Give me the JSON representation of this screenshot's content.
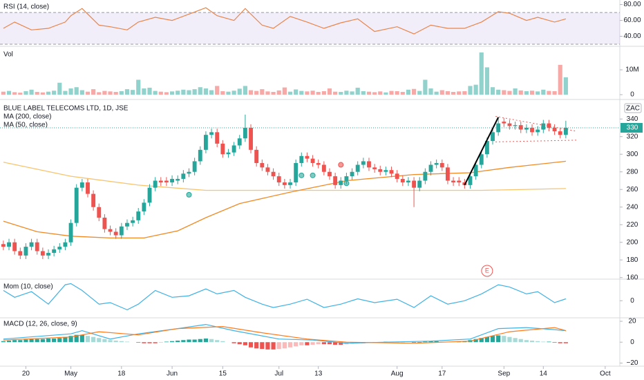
{
  "chart_data": [
    {
      "type": "line",
      "title": "RSI (14, close)",
      "color": "#e8844a",
      "band": [
        30,
        70
      ],
      "band_color": "#7e57c2",
      "x": [
        0,
        2,
        5,
        8,
        11,
        12,
        14,
        17,
        19,
        22,
        24,
        27,
        30,
        33,
        36,
        38,
        41,
        43,
        46,
        48,
        51,
        54,
        57,
        60,
        63,
        66,
        70,
        73,
        76,
        79,
        82,
        85,
        88,
        90,
        93,
        95,
        98,
        100
      ],
      "values": [
        50,
        58,
        48,
        50,
        58,
        66,
        75,
        54,
        52,
        48,
        58,
        64,
        60,
        68,
        76,
        66,
        60,
        75,
        54,
        50,
        65,
        58,
        50,
        57,
        62,
        46,
        52,
        43,
        54,
        50,
        50,
        58,
        71,
        69,
        60,
        64,
        58,
        62
      ],
      "ylim": [
        30,
        84
      ],
      "yticks": [
        {
          "value": 40,
          "label": "40.00"
        },
        {
          "value": 60,
          "label": "60.00"
        },
        {
          "value": 80,
          "label": "80.00"
        }
      ]
    },
    {
      "type": "bar",
      "title": "Vol",
      "values": [
        1.2,
        1.5,
        1,
        0.8,
        1.4,
        2,
        1.1,
        0.9,
        1.2,
        1.6,
        4.8,
        1.5,
        2.5,
        3,
        1.8,
        1.2,
        2.2,
        1,
        1.5,
        1.3,
        1.1,
        1.4,
        2.2,
        1.9,
        6,
        2.5,
        2.8,
        1.5,
        1.2,
        1,
        1.3,
        1.6,
        2,
        1.8,
        2.2,
        3,
        2.5,
        1.8,
        3.5,
        1.4,
        1.2,
        1.6,
        2.4,
        3.5,
        1.8,
        1.5,
        2.2,
        1.3,
        1.1,
        1.7,
        2.9,
        1.2,
        2.1,
        1.5,
        1.3,
        1.6,
        1.1,
        1.4,
        2.5,
        1.2,
        1.1,
        1.6,
        1.3,
        2.8,
        1.4,
        1.2,
        1,
        1.3,
        0.9,
        1.5,
        1.4,
        1.1,
        2,
        2.3,
        1.5,
        6,
        2.5,
        1.2,
        1.8,
        1.4,
        1.1,
        1.3,
        1.4,
        3.5,
        4,
        17,
        11,
        3,
        2,
        1.8,
        1.5,
        2.5,
        1.7,
        1.4,
        1.6,
        1.3,
        2,
        1.5,
        1.4,
        12,
        7
      ],
      "ylim": [
        0,
        17.8
      ],
      "yticks": [
        0,
        {
          "value": 10,
          "label": "10M"
        }
      ]
    },
    {
      "type": "candlestick",
      "title": "BLUE LABEL TELECOMS LTD, 1D, JSE",
      "currency": "ZAC",
      "up_color": "#26a69a",
      "down_color": "#ef5350",
      "open": [
        198,
        195,
        200,
        190,
        185,
        195,
        200,
        190,
        185,
        188,
        192,
        195,
        200,
        222,
        262,
        268,
        255,
        240,
        228,
        215,
        212,
        208,
        218,
        222,
        225,
        235,
        245,
        262,
        270,
        270,
        268,
        270,
        272,
        278,
        280,
        292,
        305,
        322,
        325,
        312,
        300,
        302,
        310,
        318,
        330,
        305,
        290,
        285,
        280,
        275,
        268,
        265,
        268,
        290,
        298,
        295,
        290,
        288,
        280,
        275,
        265,
        270,
        275,
        280,
        288,
        292,
        285,
        283,
        280,
        282,
        278,
        272,
        268,
        270,
        262,
        270,
        280,
        288,
        290,
        285,
        270,
        270,
        268,
        265,
        275,
        288,
        300,
        315,
        325,
        337,
        335,
        332,
        333,
        328,
        330,
        325,
        328,
        335,
        330,
        326,
        322
      ],
      "high": [
        202,
        204,
        204,
        194,
        199,
        204,
        204,
        194,
        192,
        196,
        199,
        204,
        226,
        266,
        272,
        272,
        259,
        244,
        232,
        219,
        216,
        222,
        226,
        229,
        239,
        249,
        266,
        274,
        274,
        274,
        276,
        276,
        282,
        284,
        296,
        309,
        326,
        329,
        329,
        316,
        306,
        314,
        322,
        345,
        334,
        309,
        294,
        289,
        284,
        279,
        272,
        272,
        294,
        302,
        302,
        299,
        294,
        292,
        284,
        279,
        274,
        279,
        284,
        292,
        296,
        296,
        289,
        287,
        286,
        286,
        282,
        276,
        274,
        274,
        274,
        284,
        292,
        294,
        294,
        289,
        274,
        274,
        272,
        279,
        292,
        304,
        319,
        329,
        342,
        341,
        339,
        337,
        337,
        334,
        334,
        332,
        339,
        339,
        334,
        330,
        338
      ],
      "low": [
        191,
        191,
        186,
        181,
        181,
        191,
        186,
        181,
        181,
        184,
        188,
        191,
        196,
        218,
        258,
        251,
        236,
        224,
        211,
        208,
        204,
        204,
        214,
        218,
        221,
        231,
        241,
        258,
        264,
        264,
        264,
        266,
        268,
        274,
        276,
        288,
        301,
        318,
        308,
        296,
        296,
        298,
        306,
        314,
        301,
        286,
        281,
        276,
        271,
        264,
        261,
        261,
        264,
        286,
        291,
        286,
        284,
        276,
        271,
        261,
        261,
        266,
        271,
        276,
        284,
        281,
        279,
        276,
        276,
        274,
        268,
        264,
        264,
        240,
        258,
        266,
        276,
        284,
        281,
        266,
        264,
        264,
        261,
        261,
        271,
        284,
        296,
        311,
        321,
        331,
        328,
        328,
        324,
        324,
        321,
        321,
        324,
        326,
        322,
        318,
        318
      ],
      "close": [
        195,
        200,
        190,
        185,
        195,
        200,
        190,
        185,
        188,
        192,
        195,
        200,
        222,
        262,
        268,
        255,
        240,
        228,
        215,
        212,
        208,
        218,
        222,
        225,
        235,
        245,
        262,
        270,
        268,
        268,
        272,
        272,
        278,
        280,
        292,
        305,
        322,
        325,
        312,
        300,
        302,
        310,
        318,
        330,
        305,
        290,
        285,
        280,
        275,
        268,
        265,
        268,
        290,
        298,
        295,
        290,
        288,
        280,
        275,
        265,
        270,
        275,
        280,
        288,
        292,
        285,
        283,
        280,
        282,
        278,
        272,
        268,
        270,
        262,
        270,
        280,
        288,
        290,
        285,
        270,
        268,
        268,
        265,
        275,
        288,
        300,
        315,
        325,
        335,
        335,
        332,
        333,
        328,
        330,
        325,
        328,
        335,
        330,
        326,
        322,
        330
      ],
      "overlays": [
        {
          "name": "MA (200, close)",
          "color": "#f7c46c",
          "x": [
            0,
            12,
            24,
            36,
            51,
            70,
            85,
            100
          ],
          "values": [
            291,
            275,
            265,
            259,
            259,
            259,
            259,
            261
          ]
        },
        {
          "name": "MA (50, close)",
          "color": "#f08a24",
          "x": [
            0,
            6,
            12,
            19,
            25,
            31,
            36,
            42,
            51,
            61,
            73,
            83,
            90,
            100
          ],
          "values": [
            224,
            212,
            207,
            205,
            205,
            213,
            228,
            244,
            257,
            270,
            277,
            279,
            285,
            292
          ]
        }
      ],
      "last_price": 330,
      "drawings": [
        {
          "color": "#000000",
          "dashed": false,
          "x": [
            82,
            88
          ],
          "y": [
            265,
            342
          ]
        },
        {
          "color": "#ef5350",
          "dashed": true,
          "x": [
            87.5,
            102
          ],
          "y": [
            343,
            326
          ]
        },
        {
          "color": "#ef5350",
          "dashed": true,
          "x": [
            87.5,
            102
          ],
          "y": [
            314,
            316
          ]
        }
      ],
      "markers": [
        {
          "x": 33,
          "y": 254,
          "color": "#26a69a"
        },
        {
          "x": 53,
          "y": 276,
          "color": "#26a69a"
        },
        {
          "x": 55,
          "y": 276,
          "color": "#26a69a"
        },
        {
          "x": 61,
          "y": 267,
          "color": "#26a69a"
        },
        {
          "x": 60,
          "y": 288,
          "color": "#ef5350"
        }
      ],
      "earnings": {
        "label": "E",
        "x": 86
      },
      "ylim": [
        159,
        359
      ],
      "yticks": [
        160,
        180,
        200,
        220,
        240,
        260,
        280,
        300,
        320,
        340
      ],
      "xlim": [
        -0.6,
        109.6
      ],
      "xticks": [
        {
          "value": 4,
          "label": "20"
        },
        {
          "value": 12,
          "label": "May"
        },
        {
          "value": 21,
          "label": "18"
        },
        {
          "value": 30,
          "label": "Jun"
        },
        {
          "value": 39,
          "label": "15"
        },
        {
          "value": 49,
          "label": "Jul"
        },
        {
          "value": 56,
          "label": "13"
        },
        {
          "value": 70,
          "label": "Aug"
        },
        {
          "value": 78,
          "label": "17"
        },
        {
          "value": 89,
          "label": "Sep"
        },
        {
          "value": 96,
          "label": "14"
        },
        {
          "value": 107,
          "label": "Oct"
        }
      ]
    },
    {
      "type": "line",
      "title": "Mom (10, close)",
      "color": "#3fb1e3",
      "x": [
        0,
        2,
        5,
        8,
        11,
        12,
        14,
        17,
        19,
        22,
        24,
        27,
        30,
        33,
        36,
        38,
        41,
        43,
        46,
        48,
        51,
        54,
        57,
        60,
        63,
        66,
        70,
        73,
        76,
        79,
        82,
        85,
        88,
        90,
        93,
        95,
        98,
        100
      ],
      "values": [
        27,
        9,
        24,
        -9,
        42,
        45,
        27,
        -9,
        -5,
        -24,
        -9,
        27,
        9,
        13,
        31,
        18,
        27,
        9,
        -9,
        -18,
        -9,
        4,
        -18,
        -9,
        5,
        -5,
        4,
        -18,
        13,
        -9,
        0,
        18,
        42,
        36,
        18,
        24,
        -5,
        5
      ],
      "ylim": [
        -45,
        55
      ],
      "yticks": [
        0
      ]
    },
    {
      "type": "macd",
      "title": "MACD (12, 26, close, 9)",
      "up_color": "#26a69a",
      "down_color": "#ef5350",
      "histogram": [
        1,
        1.5,
        2,
        2,
        2.5,
        3,
        3,
        3,
        3.5,
        3.5,
        4,
        5,
        6,
        7,
        7,
        6,
        5,
        4,
        3,
        2,
        1.5,
        1,
        0.5,
        0,
        -0.5,
        -1,
        -1,
        -1,
        -0.5,
        0.5,
        1,
        1.5,
        2,
        2.5,
        2.5,
        3,
        3.5,
        3,
        2,
        1,
        0,
        -1,
        -2,
        -3,
        -5,
        -6,
        -6.5,
        -7,
        -7,
        -6.5,
        -6,
        -5,
        -4,
        -3,
        -3,
        -2.5,
        -2,
        -2,
        -2,
        -2.5,
        -2.5,
        -2,
        -1.5,
        -1,
        -1,
        -0.5,
        -0.5,
        0,
        0.5,
        0.5,
        0.5,
        0.5,
        0,
        -0.5,
        -0.5,
        0.5,
        1,
        1,
        0.5,
        0,
        0,
        0.5,
        1,
        2,
        3,
        4,
        5,
        6,
        6.5,
        6,
        5,
        4,
        3,
        2,
        1.5,
        1,
        0.5,
        0.5,
        -0.5,
        -1,
        -1
      ],
      "macd": {
        "color": "#3fb1e3",
        "x": [
          0,
          12,
          14,
          19,
          24,
          31,
          36,
          41,
          49,
          55,
          61,
          68,
          76,
          83,
          88,
          93,
          98,
          100
        ],
        "values": [
          3,
          8,
          11,
          3,
          8,
          13,
          17,
          11,
          3,
          2,
          -1,
          0,
          1,
          3,
          13,
          14,
          12,
          11
        ]
      },
      "signal": {
        "color": "#ff7a1a",
        "x": [
          0,
          12,
          17,
          24,
          31,
          39,
          46,
          54,
          61,
          73,
          83,
          90,
          98,
          100
        ],
        "values": [
          2,
          5,
          10,
          7,
          13,
          15,
          9,
          3,
          0,
          -1,
          1,
          10,
          14,
          11
        ]
      },
      "ylim": [
        -23,
        22
      ],
      "yticks": [
        {
          "value": 20,
          "label": "20"
        },
        0,
        {
          "value": -20,
          "label": "−20"
        }
      ]
    }
  ]
}
